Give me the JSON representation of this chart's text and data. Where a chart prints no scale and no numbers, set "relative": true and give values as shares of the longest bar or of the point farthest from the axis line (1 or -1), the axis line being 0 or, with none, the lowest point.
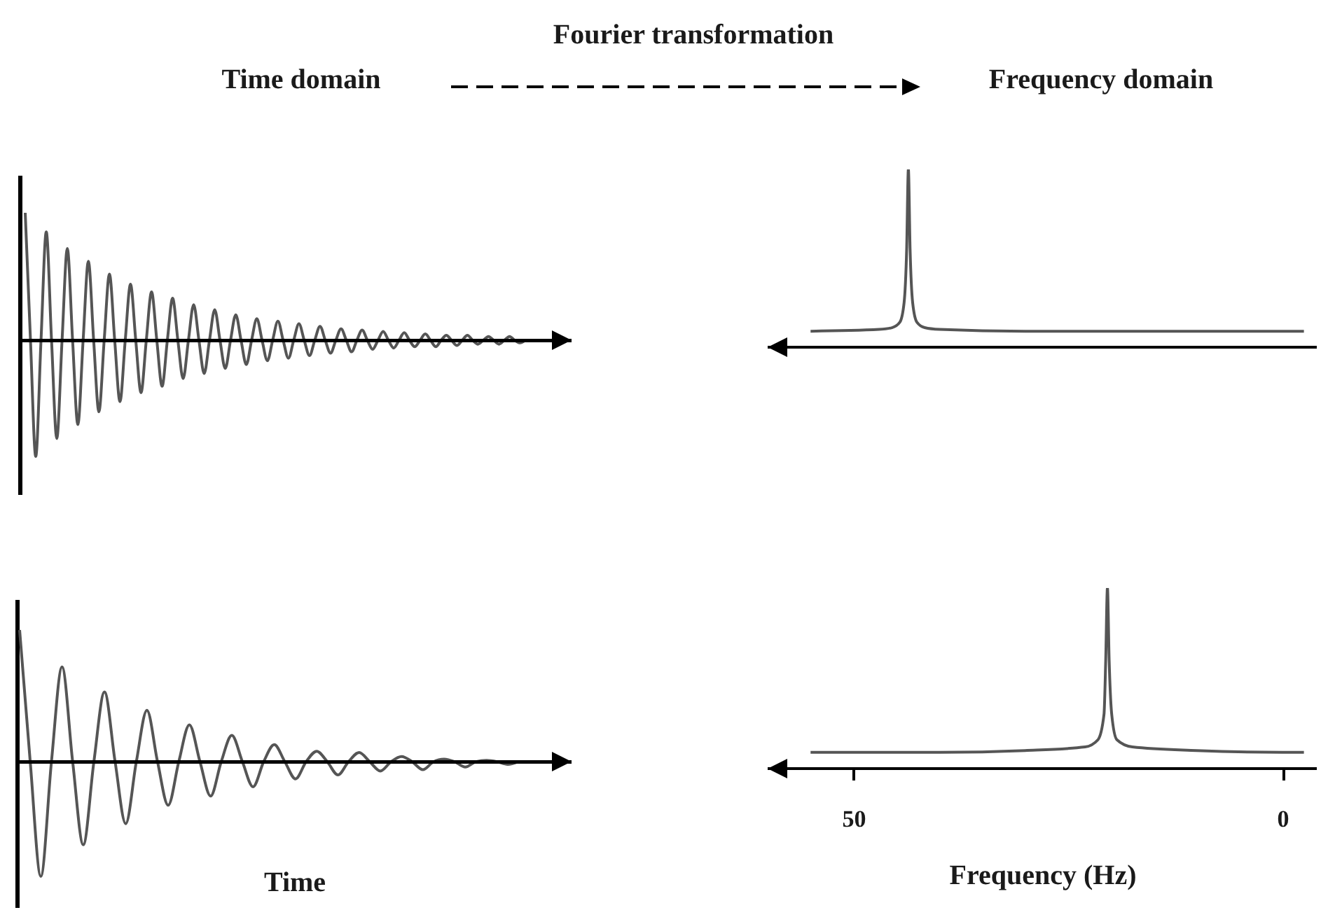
{
  "chart_data": [
    {
      "type": "line",
      "title": "Time domain",
      "annotations": [
        "Fourier transformation"
      ],
      "relative": true,
      "color": "#555555",
      "categories": [
        null,
        null,
        null,
        null,
        null,
        null,
        null,
        null,
        null,
        null,
        null,
        null,
        null,
        null,
        null,
        null,
        null,
        null,
        null,
        null,
        null,
        null,
        null,
        null,
        null,
        null,
        null,
        null,
        null,
        null,
        null,
        null,
        null,
        null,
        null,
        null,
        null,
        null,
        null,
        null,
        null,
        null,
        null,
        null,
        null,
        null,
        null,
        null,
        null,
        null,
        null,
        null,
        null,
        null,
        null,
        null,
        null,
        null,
        null,
        null,
        null,
        null,
        null,
        null,
        null,
        null,
        null,
        null,
        null,
        null,
        null,
        null,
        null,
        null,
        null,
        null,
        null,
        null,
        null,
        null,
        null,
        null,
        null,
        null,
        null,
        null,
        null,
        null,
        null,
        null,
        null,
        null,
        null,
        null,
        null,
        null
      ],
      "values": [
        1.0,
        0,
        -0.91,
        0,
        0.85,
        0,
        -0.77,
        0,
        0.72,
        0,
        -0.66,
        0,
        0.62,
        0,
        -0.56,
        0,
        0.52,
        0,
        -0.48,
        0,
        0.44,
        0,
        -0.41,
        0,
        0.38,
        0,
        -0.36,
        0,
        0.33,
        0,
        -0.3,
        0,
        0.28,
        0,
        -0.26,
        0,
        0.24,
        0,
        -0.22,
        0,
        0.2,
        0,
        -0.19,
        0,
        0.17,
        0,
        -0.16,
        0,
        0.15,
        0,
        -0.14,
        0,
        0.13,
        0,
        -0.12,
        0,
        0.11,
        0,
        -0.1,
        0,
        0.09,
        0,
        -0.09,
        0,
        0.08,
        0,
        -0.07,
        0,
        0.07,
        0,
        -0.06,
        0,
        0.06,
        0,
        -0.05,
        0,
        0.05,
        0,
        -0.05,
        0,
        0.04,
        0,
        -0.04,
        0,
        0.04,
        0,
        -0.03,
        0,
        0.03,
        0,
        -0.03,
        0,
        0.03,
        0,
        -0.02,
        0
      ]
    },
    {
      "type": "line",
      "title": "Frequency domain",
      "relative": true,
      "color": "#555555",
      "xlim": [
        60,
        -4
      ],
      "tick_labels": false,
      "x": [
        55,
        47,
        45.5,
        44.6,
        44.1,
        43.8,
        43.6,
        43.4,
        43.1,
        42.6,
        41.7,
        40,
        30,
        20,
        10,
        0,
        -2.5
      ],
      "values": [
        0.09,
        0.1,
        0.11,
        0.14,
        0.25,
        0.55,
        1,
        0.55,
        0.25,
        0.14,
        0.11,
        0.1,
        0.09,
        0.09,
        0.09,
        0.09,
        0.09
      ]
    },
    {
      "type": "line",
      "xlabel": "Time",
      "relative": true,
      "color": "#555555",
      "categories": [
        null,
        null,
        null,
        null,
        null,
        null,
        null,
        null,
        null,
        null,
        null,
        null,
        null,
        null,
        null,
        null,
        null,
        null,
        null,
        null,
        null,
        null,
        null,
        null,
        null,
        null,
        null,
        null,
        null,
        null,
        null,
        null,
        null,
        null,
        null,
        null,
        null,
        null,
        null,
        null,
        null,
        null,
        null,
        null,
        null,
        null,
        null,
        null
      ],
      "values": [
        1.0,
        0,
        -0.87,
        0,
        0.72,
        0,
        -0.63,
        0,
        0.53,
        0,
        -0.47,
        0,
        0.39,
        0,
        -0.33,
        0,
        0.28,
        0,
        -0.26,
        0,
        0.2,
        0,
        -0.19,
        0,
        0.13,
        0,
        -0.13,
        0,
        0.08,
        0,
        -0.1,
        0,
        0.07,
        0,
        -0.07,
        0,
        0.04,
        0,
        -0.06,
        0,
        0.02,
        0,
        -0.04,
        0,
        0.01,
        0,
        -0.02,
        0
      ]
    },
    {
      "type": "line",
      "xlabel": "Frequency (Hz)",
      "relative": true,
      "color": "#555555",
      "xlim": [
        60,
        -4
      ],
      "xticks": [
        50,
        0
      ],
      "x": [
        55,
        40,
        30,
        23,
        21.5,
        20.8,
        20.6,
        20.4,
        20.2,
        19.9,
        19.3,
        17.5,
        10,
        0,
        -2.5
      ],
      "values": [
        0.09,
        0.09,
        0.1,
        0.12,
        0.16,
        0.3,
        0.6,
        1,
        0.6,
        0.3,
        0.16,
        0.12,
        0.1,
        0.09,
        0.09
      ]
    }
  ]
}
